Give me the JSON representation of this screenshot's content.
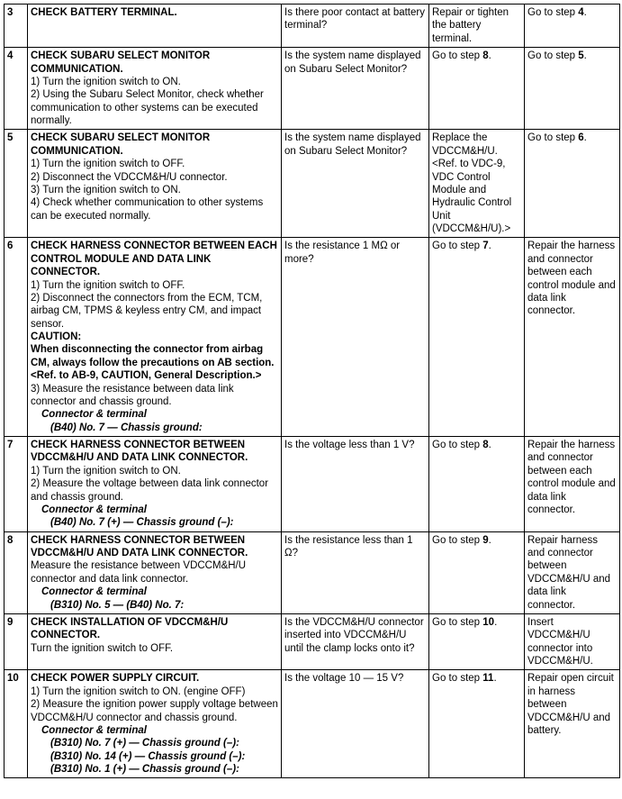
{
  "columns": {
    "step_w": 26,
    "proc_w": 282,
    "check_w": 164,
    "yes_w": 106,
    "no_w": 106
  },
  "rows": [
    {
      "step": "3",
      "proc_title": "CHECK BATTERY TERMINAL.",
      "proc_body": "",
      "check": "Is there poor contact at battery terminal?",
      "yes": "Repair or tighten the battery terminal.",
      "no_pre": "Go to step ",
      "no_bold": "4",
      "no_post": "."
    },
    {
      "step": "4",
      "proc_title": "CHECK SUBARU SELECT MONITOR COMMUNICATION.",
      "proc_lines": [
        "1)  Turn the ignition switch to ON.",
        "2)  Using the Subaru Select Monitor, check whether communication to other systems can be executed normally."
      ],
      "check": "Is the system name displayed on Subaru Select Monitor?",
      "yes_pre": "Go to step ",
      "yes_bold": "8",
      "yes_post": ".",
      "no_pre": "Go to step ",
      "no_bold": "5",
      "no_post": "."
    },
    {
      "step": "5",
      "proc_title": "CHECK SUBARU SELECT MONITOR COMMUNICATION.",
      "proc_lines": [
        "1)  Turn the ignition switch to OFF.",
        "2)  Disconnect the VDCCM&H/U connector.",
        "3)  Turn the ignition switch to ON.",
        "4)  Check whether communication to other systems can be executed normally."
      ],
      "check": "Is the system name displayed on Subaru Select Monitor?",
      "yes": "Replace the VDCCM&H/U. <Ref. to VDC-9, VDC Control Module and Hydraulic Control Unit (VDCCM&H/U).>",
      "no_pre": "Go to step ",
      "no_bold": "6",
      "no_post": "."
    },
    {
      "step": "6",
      "proc_title": "CHECK HARNESS CONNECTOR BETWEEN EACH CONTROL MODULE AND DATA LINK CONNECTOR.",
      "proc_lines": [
        "1)  Turn the ignition switch to OFF.",
        "2)  Disconnect the connectors from the ECM, TCM, airbag CM, TPMS & keyless entry CM, and impact sensor."
      ],
      "caution_label": "CAUTION:",
      "caution_text": "When disconnecting the connector from airbag CM, always follow the precautions on AB section. <Ref. to AB-9, CAUTION, General Description.>",
      "proc_lines2": [
        "3)  Measure the resistance between data link connector and chassis ground."
      ],
      "conn_label": "Connector & terminal",
      "conn_lines": [
        "(B40) No. 7 — Chassis ground:"
      ],
      "check": "Is the resistance 1 MΩ or more?",
      "yes_pre": "Go to step ",
      "yes_bold": "7",
      "yes_post": ".",
      "no": "Repair the harness and connector between each control module and data link connector."
    },
    {
      "step": "7",
      "proc_title": "CHECK HARNESS CONNECTOR BETWEEN VDCCM&H/U AND DATA LINK CONNECTOR.",
      "proc_lines": [
        "1)  Turn the ignition switch to ON.",
        "2)  Measure the voltage between data link connector and chassis ground."
      ],
      "conn_label": "Connector & terminal",
      "conn_lines": [
        "(B40) No. 7 (+) — Chassis ground (–):"
      ],
      "check": "Is the voltage less than 1 V?",
      "yes_pre": "Go to step ",
      "yes_bold": "8",
      "yes_post": ".",
      "no": "Repair the harness and connector between each control module and data link connector."
    },
    {
      "step": "8",
      "proc_title": "CHECK HARNESS CONNECTOR BETWEEN VDCCM&H/U AND DATA LINK CONNECTOR.",
      "proc_lines": [
        "Measure the resistance between VDCCM&H/U connector and data link connector."
      ],
      "conn_label": "Connector & terminal",
      "conn_lines": [
        "(B310) No. 5 — (B40) No. 7:"
      ],
      "check": "Is the resistance less than 1 Ω?",
      "yes_pre": "Go to step ",
      "yes_bold": "9",
      "yes_post": ".",
      "no": "Repair harness and connector between VDCCM&H/U and data link connector."
    },
    {
      "step": "9",
      "proc_title": "CHECK INSTALLATION OF VDCCM&H/U CONNECTOR.",
      "proc_lines": [
        "Turn the ignition switch to OFF."
      ],
      "check": "Is the VDCCM&H/U connector inserted into VDCCM&H/U until the clamp locks onto it?",
      "yes_pre": "Go to step ",
      "yes_bold": "10",
      "yes_post": ".",
      "no": "Insert VDCCM&H/U connector into VDCCM&H/U."
    },
    {
      "step": "10",
      "proc_title": "CHECK POWER SUPPLY CIRCUIT.",
      "proc_lines": [
        "1)  Turn the ignition switch to ON. (engine OFF)",
        "2)  Measure the ignition power supply voltage between VDCCM&H/U connector and chassis ground."
      ],
      "conn_label": "Connector & terminal",
      "conn_lines": [
        "(B310) No. 7 (+) — Chassis ground (–):",
        "(B310) No. 14 (+) — Chassis ground (–):",
        "(B310) No. 1 (+) — Chassis ground (–):"
      ],
      "check": "Is the voltage 10 — 15 V?",
      "yes_pre": "Go to step ",
      "yes_bold": "11",
      "yes_post": ".",
      "no": "Repair open circuit in harness between VDCCM&H/U and battery."
    }
  ]
}
